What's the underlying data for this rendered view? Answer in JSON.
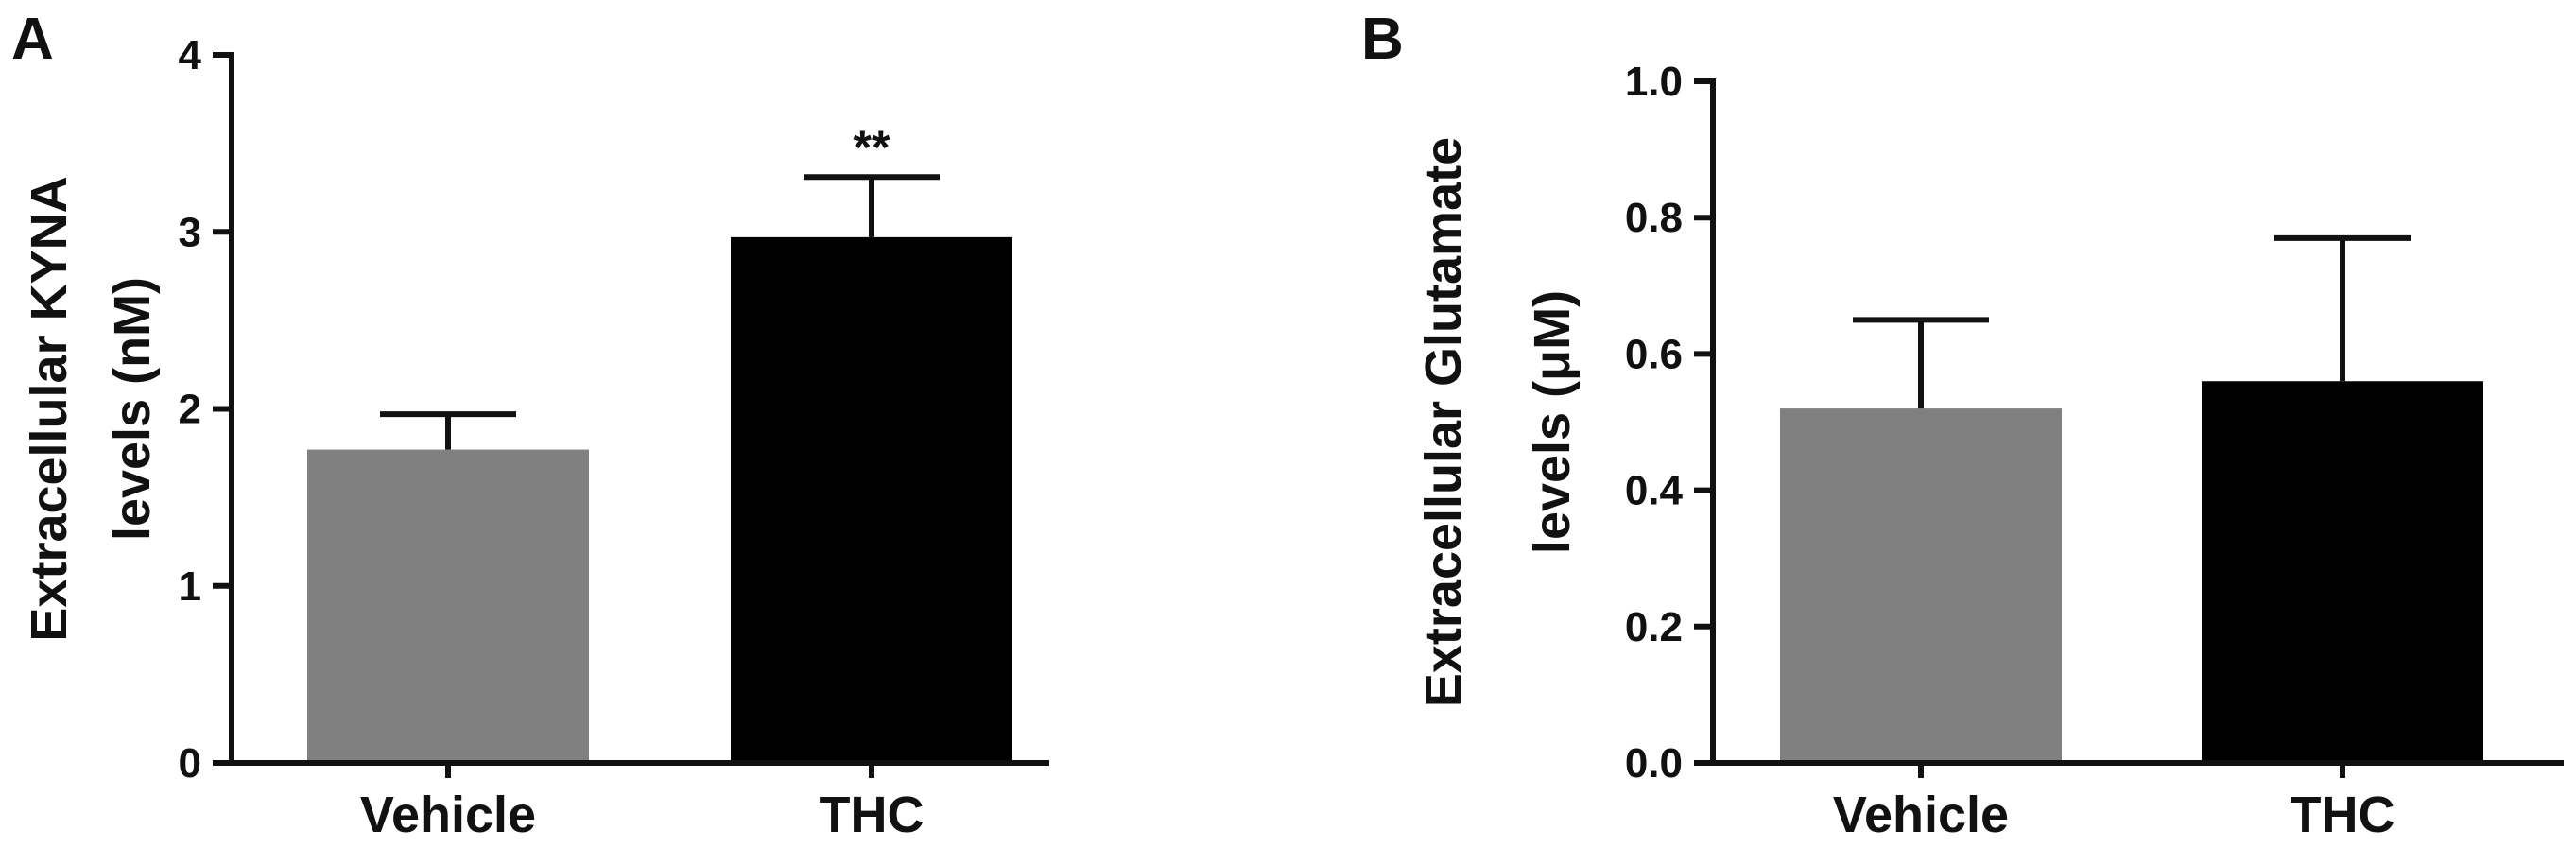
{
  "chart_data": [
    {
      "type": "bar",
      "panel_label": "A",
      "categories": [
        "Vehicle",
        "THC"
      ],
      "values": [
        1.77,
        2.97
      ],
      "error_upper": [
        1.97,
        3.31
      ],
      "bar_colors": [
        "#808080",
        "#000000"
      ],
      "annotations": [
        {
          "category": "THC",
          "text": "**"
        }
      ],
      "ylabel_lines": [
        "Extracellular KYNA",
        "levels (nM)"
      ],
      "ylim": [
        0,
        4
      ],
      "yticks": [
        0,
        1,
        2,
        3,
        4
      ],
      "ytick_labels": [
        "0",
        "1",
        "2",
        "3",
        "4"
      ],
      "grid": false
    },
    {
      "type": "bar",
      "panel_label": "B",
      "categories": [
        "Vehicle",
        "THC"
      ],
      "values": [
        0.52,
        0.56
      ],
      "error_upper": [
        0.65,
        0.77
      ],
      "bar_colors": [
        "#808080",
        "#000000"
      ],
      "annotations": [],
      "ylabel_lines": [
        "Extracellular Glutamate",
        "levels (μM)"
      ],
      "ylim": [
        0,
        1.0
      ],
      "yticks": [
        0,
        0.2,
        0.4,
        0.6,
        0.8,
        1.0
      ],
      "ytick_labels": [
        "0.0",
        "0.2",
        "0.4",
        "0.6",
        "0.8",
        "1.0"
      ],
      "grid": false
    }
  ]
}
